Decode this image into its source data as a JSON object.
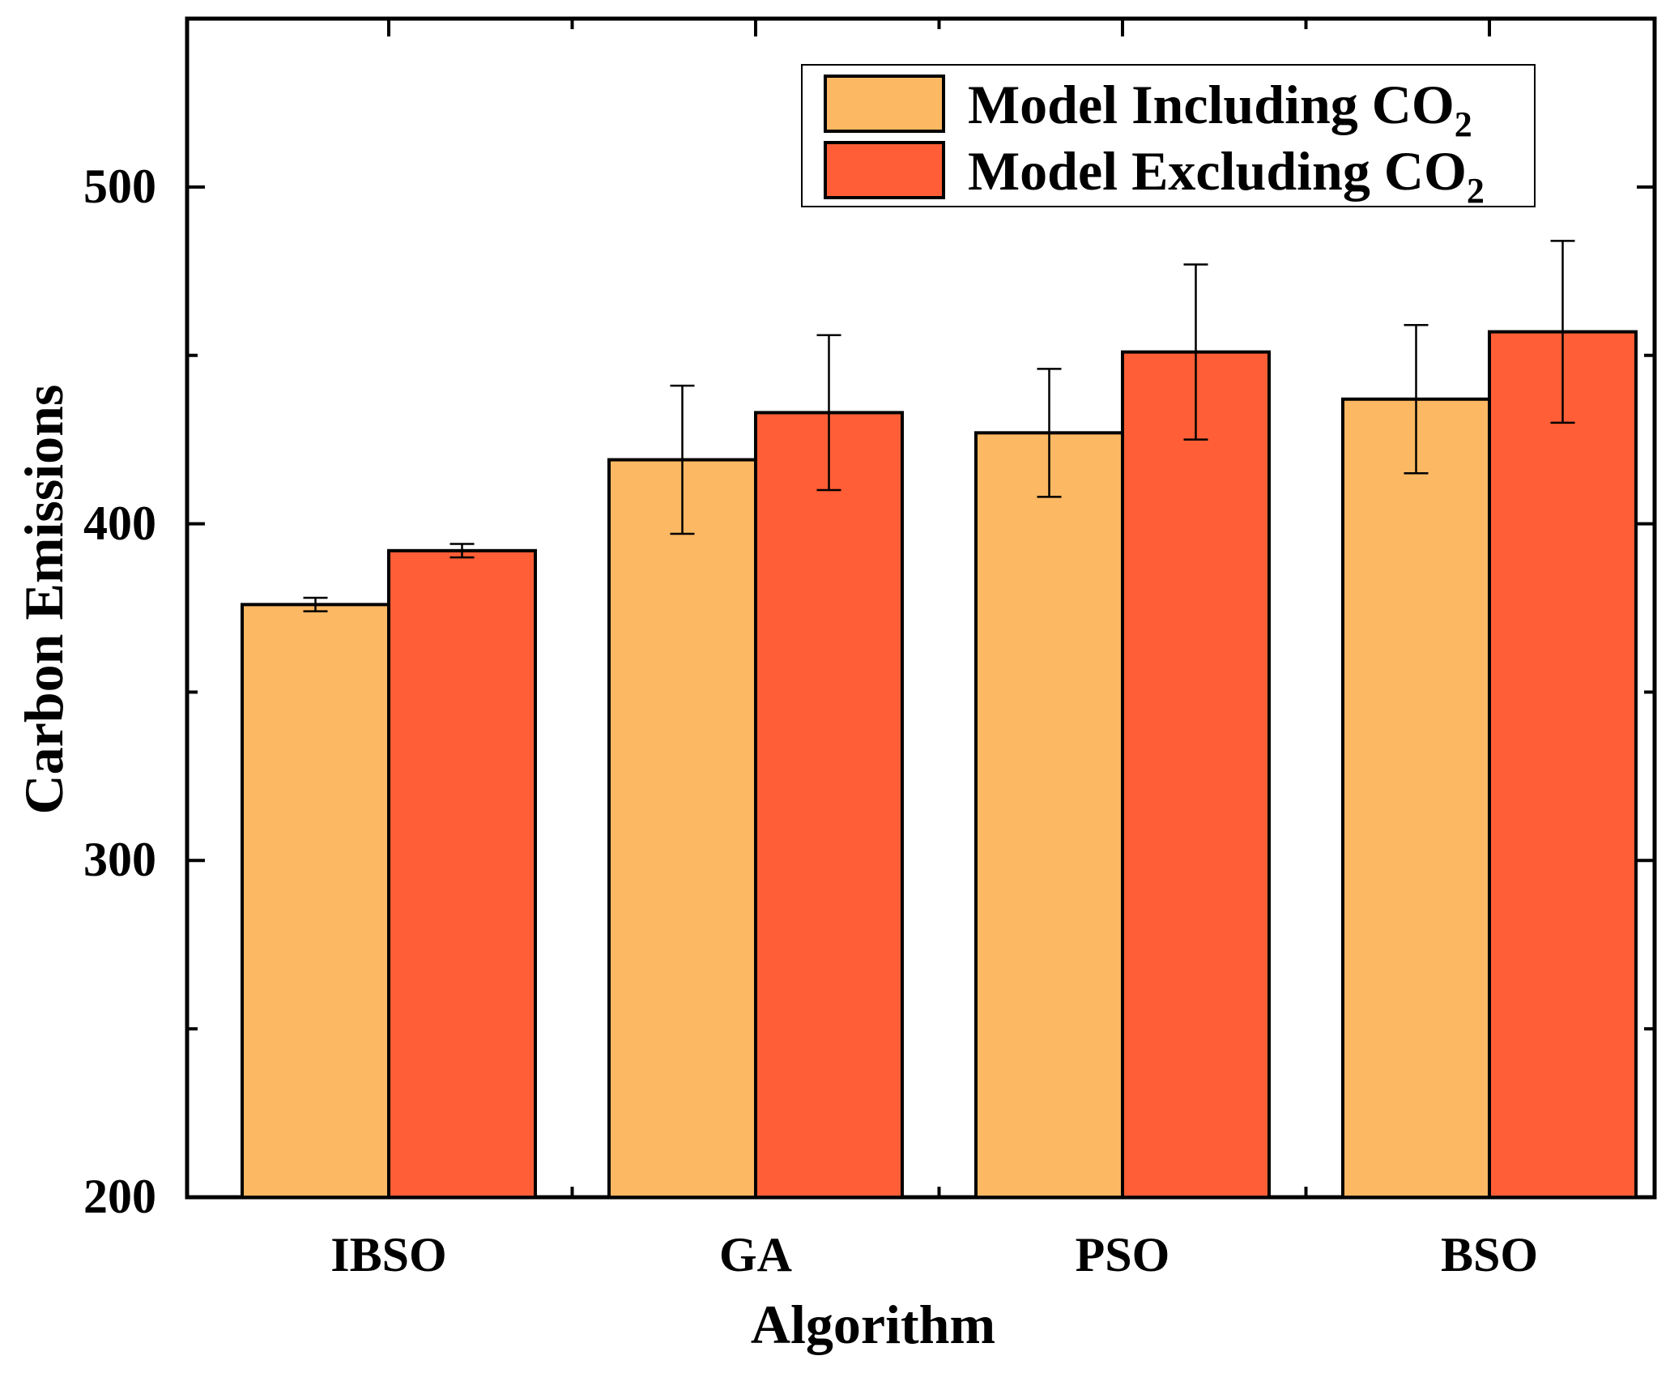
{
  "chart_data": {
    "type": "bar",
    "title": "",
    "xlabel": "Algorithm",
    "ylabel": "Carbon Emissions",
    "categories": [
      "IBSO",
      "GA",
      "PSO",
      "BSO"
    ],
    "ylim": [
      200,
      550
    ],
    "yticks": [
      200,
      300,
      400,
      500
    ],
    "yticks_minor": [
      250,
      350,
      450
    ],
    "grid": false,
    "legend_position": "top-right",
    "series": [
      {
        "name": "Model Including CO",
        "name_subscript": "2",
        "color": "#FDB863",
        "values": [
          376,
          419,
          427,
          437
        ],
        "errors": [
          2,
          22,
          19,
          22
        ]
      },
      {
        "name": "Model Excluding CO",
        "name_subscript": "2",
        "color": "#FF5E36",
        "values": [
          392,
          433,
          451,
          457
        ],
        "errors": [
          2,
          23,
          26,
          27
        ]
      }
    ]
  }
}
